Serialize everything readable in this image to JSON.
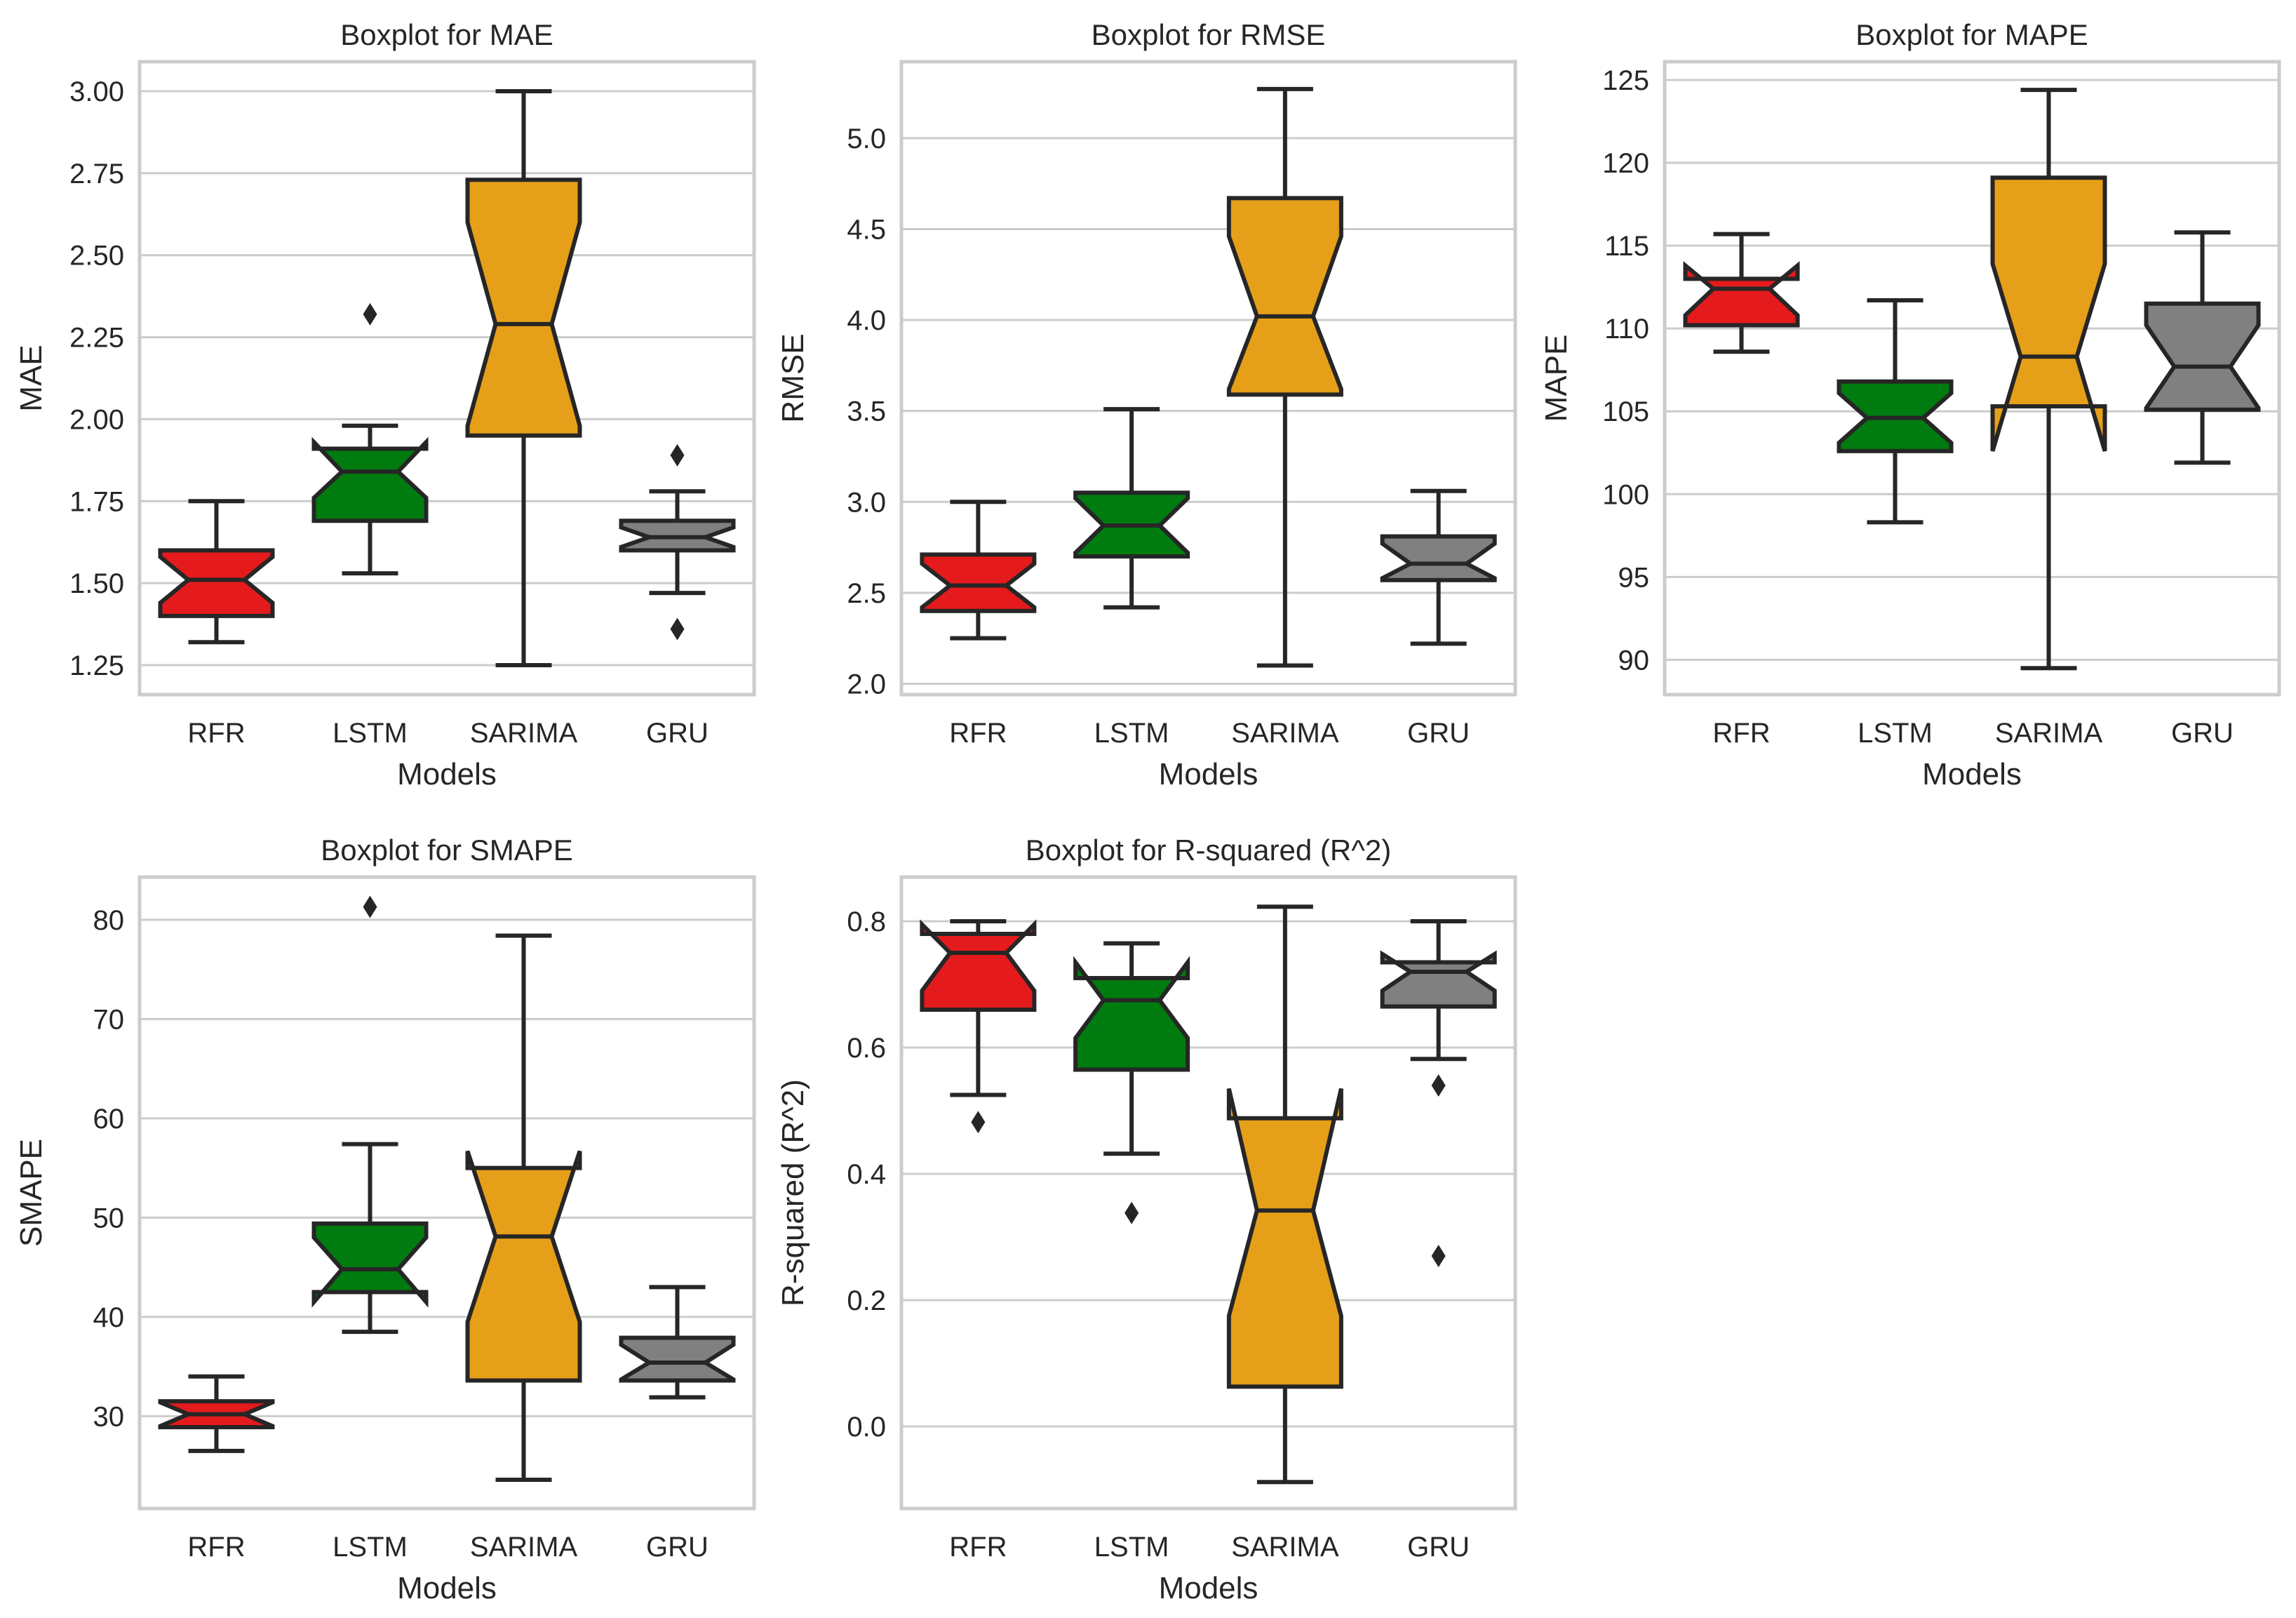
{
  "chart_data": [
    {
      "type": "boxplot",
      "title": "Boxplot for MAE",
      "xlabel": "Models",
      "ylabel": "MAE",
      "ylim": [
        1.16,
        3.09
      ],
      "yticks": [
        1.25,
        1.5,
        1.75,
        2.0,
        2.25,
        2.5,
        2.75,
        3.0
      ],
      "ytick_labels": [
        "1.25",
        "1.50",
        "1.75",
        "2.00",
        "2.25",
        "2.50",
        "2.75",
        "3.00"
      ],
      "categories": [
        "RFR",
        "LSTM",
        "SARIMA",
        "GRU"
      ],
      "boxes": [
        {
          "name": "RFR",
          "color": "#e41a1c",
          "whislo": 1.32,
          "q1": 1.4,
          "med": 1.51,
          "q3": 1.6,
          "whishi": 1.75,
          "notch_lo": 1.44,
          "notch_hi": 1.58,
          "fliers": []
        },
        {
          "name": "LSTM",
          "color": "#007b0f",
          "whislo": 1.53,
          "q1": 1.69,
          "med": 1.84,
          "q3": 1.91,
          "whishi": 1.98,
          "notch_lo": 1.76,
          "notch_hi": 1.93,
          "fliers": [
            2.32
          ]
        },
        {
          "name": "SARIMA",
          "color": "#e69f19",
          "whislo": 1.25,
          "q1": 1.95,
          "med": 2.29,
          "q3": 2.73,
          "whishi": 3.0,
          "notch_lo": 1.98,
          "notch_hi": 2.6,
          "fliers": []
        },
        {
          "name": "GRU",
          "color": "#808080",
          "whislo": 1.47,
          "q1": 1.6,
          "med": 1.64,
          "q3": 1.69,
          "whishi": 1.78,
          "notch_lo": 1.61,
          "notch_hi": 1.67,
          "fliers": [
            1.89,
            1.36
          ]
        }
      ]
    },
    {
      "type": "boxplot",
      "title": "Boxplot for RMSE",
      "xlabel": "Models",
      "ylabel": "RMSE",
      "ylim": [
        1.94,
        5.42
      ],
      "yticks": [
        2.0,
        2.5,
        3.0,
        3.5,
        4.0,
        4.5,
        5.0
      ],
      "ytick_labels": [
        "2.0",
        "2.5",
        "3.0",
        "3.5",
        "4.0",
        "4.5",
        "5.0"
      ],
      "categories": [
        "RFR",
        "LSTM",
        "SARIMA",
        "GRU"
      ],
      "boxes": [
        {
          "name": "RFR",
          "color": "#e41a1c",
          "whislo": 2.25,
          "q1": 2.4,
          "med": 2.54,
          "q3": 2.71,
          "whishi": 3.0,
          "notch_lo": 2.42,
          "notch_hi": 2.66,
          "fliers": []
        },
        {
          "name": "LSTM",
          "color": "#007b0f",
          "whislo": 2.42,
          "q1": 2.7,
          "med": 2.87,
          "q3": 3.05,
          "whishi": 3.51,
          "notch_lo": 2.72,
          "notch_hi": 3.02,
          "fliers": []
        },
        {
          "name": "SARIMA",
          "color": "#e69f19",
          "whislo": 2.1,
          "q1": 3.59,
          "med": 4.02,
          "q3": 4.67,
          "whishi": 5.27,
          "notch_lo": 3.62,
          "notch_hi": 4.46,
          "fliers": []
        },
        {
          "name": "GRU",
          "color": "#808080",
          "whislo": 2.22,
          "q1": 2.57,
          "med": 2.66,
          "q3": 2.81,
          "whishi": 3.06,
          "notch_lo": 2.58,
          "notch_hi": 2.77,
          "fliers": []
        }
      ]
    },
    {
      "type": "boxplot",
      "title": "Boxplot for MAPE",
      "xlabel": "Models",
      "ylabel": "MAPE",
      "ylim": [
        87.9,
        126.1
      ],
      "yticks": [
        90,
        95,
        100,
        105,
        110,
        115,
        120,
        125
      ],
      "ytick_labels": [
        "90",
        "95",
        "100",
        "105",
        "110",
        "115",
        "120",
        "125"
      ],
      "categories": [
        "RFR",
        "LSTM",
        "SARIMA",
        "GRU"
      ],
      "boxes": [
        {
          "name": "RFR",
          "color": "#e41a1c",
          "whislo": 108.6,
          "q1": 110.2,
          "med": 112.4,
          "q3": 113.0,
          "whishi": 115.7,
          "notch_lo": 110.8,
          "notch_hi": 113.8,
          "fliers": []
        },
        {
          "name": "LSTM",
          "color": "#007b0f",
          "whislo": 98.3,
          "q1": 102.6,
          "med": 104.6,
          "q3": 106.8,
          "whishi": 111.7,
          "notch_lo": 103.1,
          "notch_hi": 106.1,
          "fliers": []
        },
        {
          "name": "SARIMA",
          "color": "#e69f19",
          "whislo": 89.5,
          "q1": 105.3,
          "med": 108.3,
          "q3": 119.1,
          "whishi": 124.4,
          "notch_lo": 102.6,
          "notch_hi": 113.9,
          "fliers": []
        },
        {
          "name": "GRU",
          "color": "#808080",
          "whislo": 101.9,
          "q1": 105.1,
          "med": 107.7,
          "q3": 111.5,
          "whishi": 115.8,
          "notch_lo": 105.2,
          "notch_hi": 110.2,
          "fliers": []
        }
      ]
    },
    {
      "type": "boxplot",
      "title": "Boxplot for SMAPE",
      "xlabel": "Models",
      "ylabel": "SMAPE",
      "ylim": [
        20.7,
        84.3
      ],
      "yticks": [
        30,
        40,
        50,
        60,
        70,
        80
      ],
      "ytick_labels": [
        "30",
        "40",
        "50",
        "60",
        "70",
        "80"
      ],
      "categories": [
        "RFR",
        "LSTM",
        "SARIMA",
        "GRU"
      ],
      "boxes": [
        {
          "name": "RFR",
          "color": "#e41a1c",
          "whislo": 26.5,
          "q1": 28.9,
          "med": 30.2,
          "q3": 31.5,
          "whishi": 34.0,
          "notch_lo": 29.0,
          "notch_hi": 31.4,
          "fliers": []
        },
        {
          "name": "LSTM",
          "color": "#007b0f",
          "whislo": 38.5,
          "q1": 42.5,
          "med": 44.8,
          "q3": 49.4,
          "whishi": 57.4,
          "notch_lo": 41.5,
          "notch_hi": 48.0,
          "fliers": [
            81.3
          ]
        },
        {
          "name": "SARIMA",
          "color": "#e69f19",
          "whislo": 23.6,
          "q1": 33.6,
          "med": 48.1,
          "q3": 55.0,
          "whishi": 78.4,
          "notch_lo": 39.5,
          "notch_hi": 56.7,
          "fliers": []
        },
        {
          "name": "GRU",
          "color": "#808080",
          "whislo": 31.9,
          "q1": 33.6,
          "med": 35.4,
          "q3": 37.9,
          "whishi": 43.0,
          "notch_lo": 33.7,
          "notch_hi": 37.2,
          "fliers": []
        }
      ]
    },
    {
      "type": "boxplot",
      "title": "Boxplot for R-squared (R^2)",
      "xlabel": "Models",
      "ylabel": "R-squared (R^2)",
      "ylim": [
        -0.13,
        0.87
      ],
      "yticks": [
        0.0,
        0.2,
        0.4,
        0.6,
        0.8
      ],
      "ytick_labels": [
        "0.0",
        "0.2",
        "0.4",
        "0.6",
        "0.8"
      ],
      "categories": [
        "RFR",
        "LSTM",
        "SARIMA",
        "GRU"
      ],
      "boxes": [
        {
          "name": "RFR",
          "color": "#e41a1c",
          "whislo": 0.525,
          "q1": 0.66,
          "med": 0.75,
          "q3": 0.78,
          "whishi": 0.8,
          "notch_lo": 0.69,
          "notch_hi": 0.795,
          "fliers": [
            0.482
          ]
        },
        {
          "name": "LSTM",
          "color": "#007b0f",
          "whislo": 0.432,
          "q1": 0.565,
          "med": 0.675,
          "q3": 0.71,
          "whishi": 0.765,
          "notch_lo": 0.615,
          "notch_hi": 0.735,
          "fliers": [
            0.338
          ]
        },
        {
          "name": "SARIMA",
          "color": "#e69f19",
          "whislo": -0.088,
          "q1": 0.063,
          "med": 0.342,
          "q3": 0.488,
          "whishi": 0.823,
          "notch_lo": 0.175,
          "notch_hi": 0.535,
          "fliers": []
        },
        {
          "name": "GRU",
          "color": "#808080",
          "whislo": 0.582,
          "q1": 0.665,
          "med": 0.72,
          "q3": 0.735,
          "whishi": 0.8,
          "notch_lo": 0.69,
          "notch_hi": 0.748,
          "fliers": [
            0.54,
            0.27
          ]
        }
      ]
    }
  ]
}
